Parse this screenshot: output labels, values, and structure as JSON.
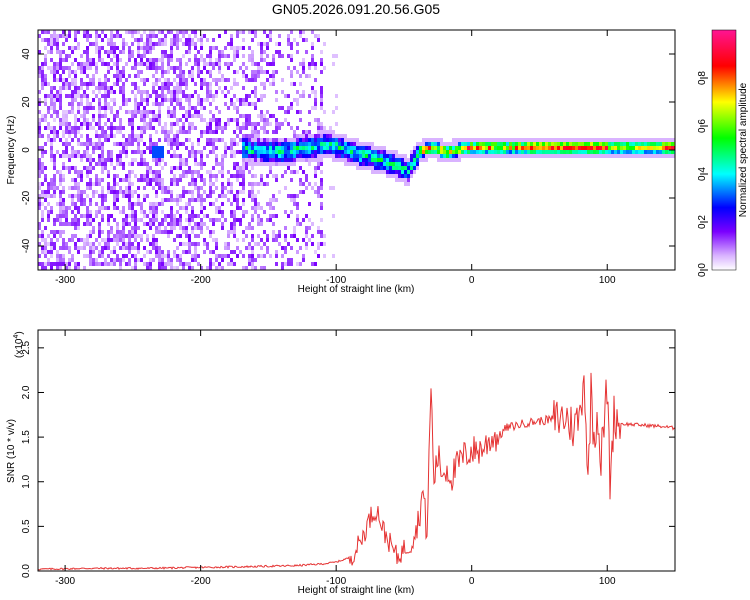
{
  "chart_data": [
    {
      "type": "heatmap",
      "title": "GN05.2026.091.20.56.G05",
      "xlabel": "Height of straight line (km)",
      "ylabel": "Frequency (Hz)",
      "xlim": [
        -320,
        150
      ],
      "ylim": [
        -50,
        50
      ],
      "xticks": [
        -300,
        -200,
        -100,
        0,
        100
      ],
      "yticks": [
        -40,
        -20,
        0,
        20,
        40
      ],
      "colorbar": {
        "label": "Normalized spectral amplitude",
        "range": [
          0,
          1
        ],
        "ticks": [
          "0.0",
          "0.2",
          "0.4",
          "0.6",
          "0.8"
        ],
        "colors": [
          "#ffffff",
          "#d9b3ff",
          "#7a00ff",
          "#0000ff",
          "#00ffff",
          "#00ff00",
          "#ffff00",
          "#ff0000",
          "#ff1493"
        ]
      },
      "dominant_frequency": {
        "x": [
          -165,
          -140,
          -120,
          -105,
          -90,
          -70,
          -55,
          -48,
          -40,
          -30,
          -20,
          0,
          50,
          100,
          150
        ],
        "y": [
          1,
          0,
          2,
          3,
          0,
          -3,
          -6,
          -8,
          0,
          2,
          0,
          2,
          2,
          2,
          2
        ]
      }
    },
    {
      "type": "line",
      "xlabel": "Height of straight line (km)",
      "ylabel": "SNR (10 * v/v)",
      "multiplier": "(x10",
      "multiplier_exp": "4",
      "xlim": [
        -320,
        150
      ],
      "ylim": [
        0,
        2.7
      ],
      "xticks": [
        -300,
        -200,
        -100,
        0,
        100
      ],
      "yticks": [
        "0.0",
        "0.5",
        "1.0",
        "1.5",
        "2.0",
        "2.5"
      ],
      "series": [
        {
          "color": "#e53333",
          "x": [
            -320,
            -280,
            -240,
            -200,
            -160,
            -130,
            -110,
            -100,
            -90,
            -85,
            -80,
            -75,
            -70,
            -65,
            -60,
            -55,
            -50,
            -45,
            -40,
            -36,
            -33,
            -30,
            -28,
            -25,
            -22,
            -18,
            -15,
            -10,
            -5,
            0,
            5,
            10,
            15,
            20,
            25,
            30,
            40,
            50,
            60,
            70,
            75,
            80,
            83,
            86,
            88,
            90,
            93,
            95,
            98,
            100,
            102,
            105,
            110,
            120,
            130,
            140,
            150
          ],
          "y": [
            0.02,
            0.03,
            0.03,
            0.04,
            0.05,
            0.06,
            0.08,
            0.1,
            0.15,
            0.25,
            0.4,
            0.6,
            0.7,
            0.45,
            0.3,
            0.15,
            0.25,
            0.3,
            0.5,
            0.9,
            0.4,
            2.1,
            1.0,
            1.3,
            1.1,
            1.15,
            1.05,
            1.2,
            1.3,
            1.35,
            1.35,
            1.4,
            1.5,
            1.5,
            1.6,
            1.62,
            1.66,
            1.68,
            1.7,
            1.72,
            1.6,
            1.75,
            2.25,
            0.9,
            2.1,
            1.5,
            1.8,
            1.2,
            1.7,
            2.1,
            1.0,
            1.75,
            1.65,
            1.64,
            1.63,
            1.62,
            1.6
          ]
        }
      ]
    }
  ]
}
